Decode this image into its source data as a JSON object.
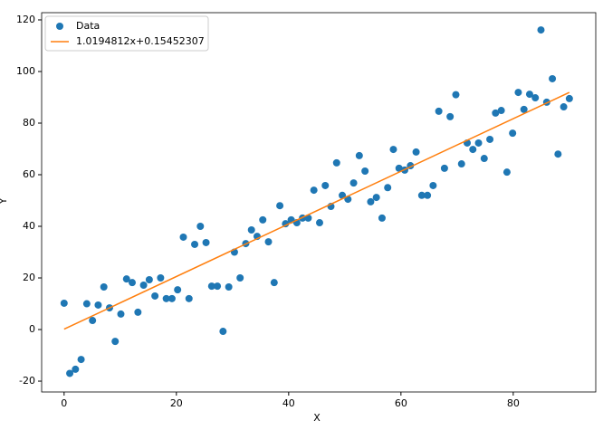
{
  "chart_data": {
    "type": "scatter",
    "xlabel": "X",
    "ylabel": "Y",
    "xlim": [
      -4,
      94.7
    ],
    "ylim": [
      -24.2,
      122.8
    ],
    "xticks": [
      0,
      20,
      40,
      60,
      80
    ],
    "yticks": [
      -20,
      0,
      20,
      40,
      60,
      80,
      100,
      120
    ],
    "legend": "upper left",
    "series": [
      {
        "name": "Data",
        "color": "#1f77b4",
        "mode": "markers",
        "x": [
          0,
          1.01,
          2.02,
          3.03,
          4.04,
          5.06,
          6.07,
          7.08,
          8.09,
          9.1,
          10.11,
          11.12,
          12.13,
          13.15,
          14.16,
          15.17,
          16.18,
          17.19,
          18.2,
          19.21,
          20.22,
          21.24,
          22.25,
          23.26,
          24.27,
          25.28,
          26.29,
          27.3,
          28.31,
          29.33,
          30.34,
          31.35,
          32.36,
          33.37,
          34.38,
          35.39,
          36.4,
          37.42,
          38.43,
          39.44,
          40.45,
          41.46,
          42.47,
          43.48,
          44.49,
          45.51,
          46.52,
          47.53,
          48.54,
          49.55,
          50.56,
          51.57,
          52.58,
          53.6,
          54.61,
          55.62,
          56.63,
          57.64,
          58.65,
          59.66,
          60.67,
          61.69,
          62.7,
          63.71,
          64.72,
          65.73,
          66.74,
          67.75,
          68.76,
          69.78,
          70.79,
          71.8,
          72.81,
          73.82,
          74.83,
          75.84,
          76.85,
          77.87,
          78.88,
          79.89,
          80.9,
          81.91,
          82.92,
          83.93,
          84.94,
          85.96,
          86.97,
          87.98,
          88.99,
          90
        ],
        "values": [
          10.2,
          -17,
          -15.4,
          -11.6,
          10,
          3.5,
          9.5,
          16.5,
          8.4,
          -4.6,
          6,
          19.6,
          18.2,
          6.7,
          17.2,
          19.3,
          13,
          20,
          12,
          12,
          15.4,
          35.8,
          12,
          33,
          40,
          33.7,
          16.8,
          16.8,
          -0.7,
          16.5,
          30,
          20,
          33.3,
          38.6,
          36.1,
          42.5,
          34,
          18.2,
          48,
          41,
          42.5,
          41.4,
          43.2,
          43.2,
          54,
          41.4,
          55.8,
          47.7,
          64.6,
          52,
          50.5,
          56.8,
          67.4,
          61.4,
          49.5,
          51.2,
          43.2,
          55,
          69.8,
          62.5,
          61.8,
          63.5,
          68.8,
          52,
          52,
          55.8,
          84.6,
          62.5,
          82.5,
          91,
          64.2,
          72.3,
          69.8,
          72.3,
          66.3,
          73.7,
          83.9,
          84.9,
          61,
          76.1,
          91.9,
          85.3,
          91.2,
          89.8,
          116.1,
          88.1,
          97.2,
          68,
          86.3,
          89.5
        ]
      },
      {
        "name": "1.0194812x+0.15452307",
        "color": "#ff7f0e",
        "mode": "line",
        "x": [
          0,
          90
        ],
        "values": [
          0.15,
          91.91
        ]
      }
    ]
  }
}
